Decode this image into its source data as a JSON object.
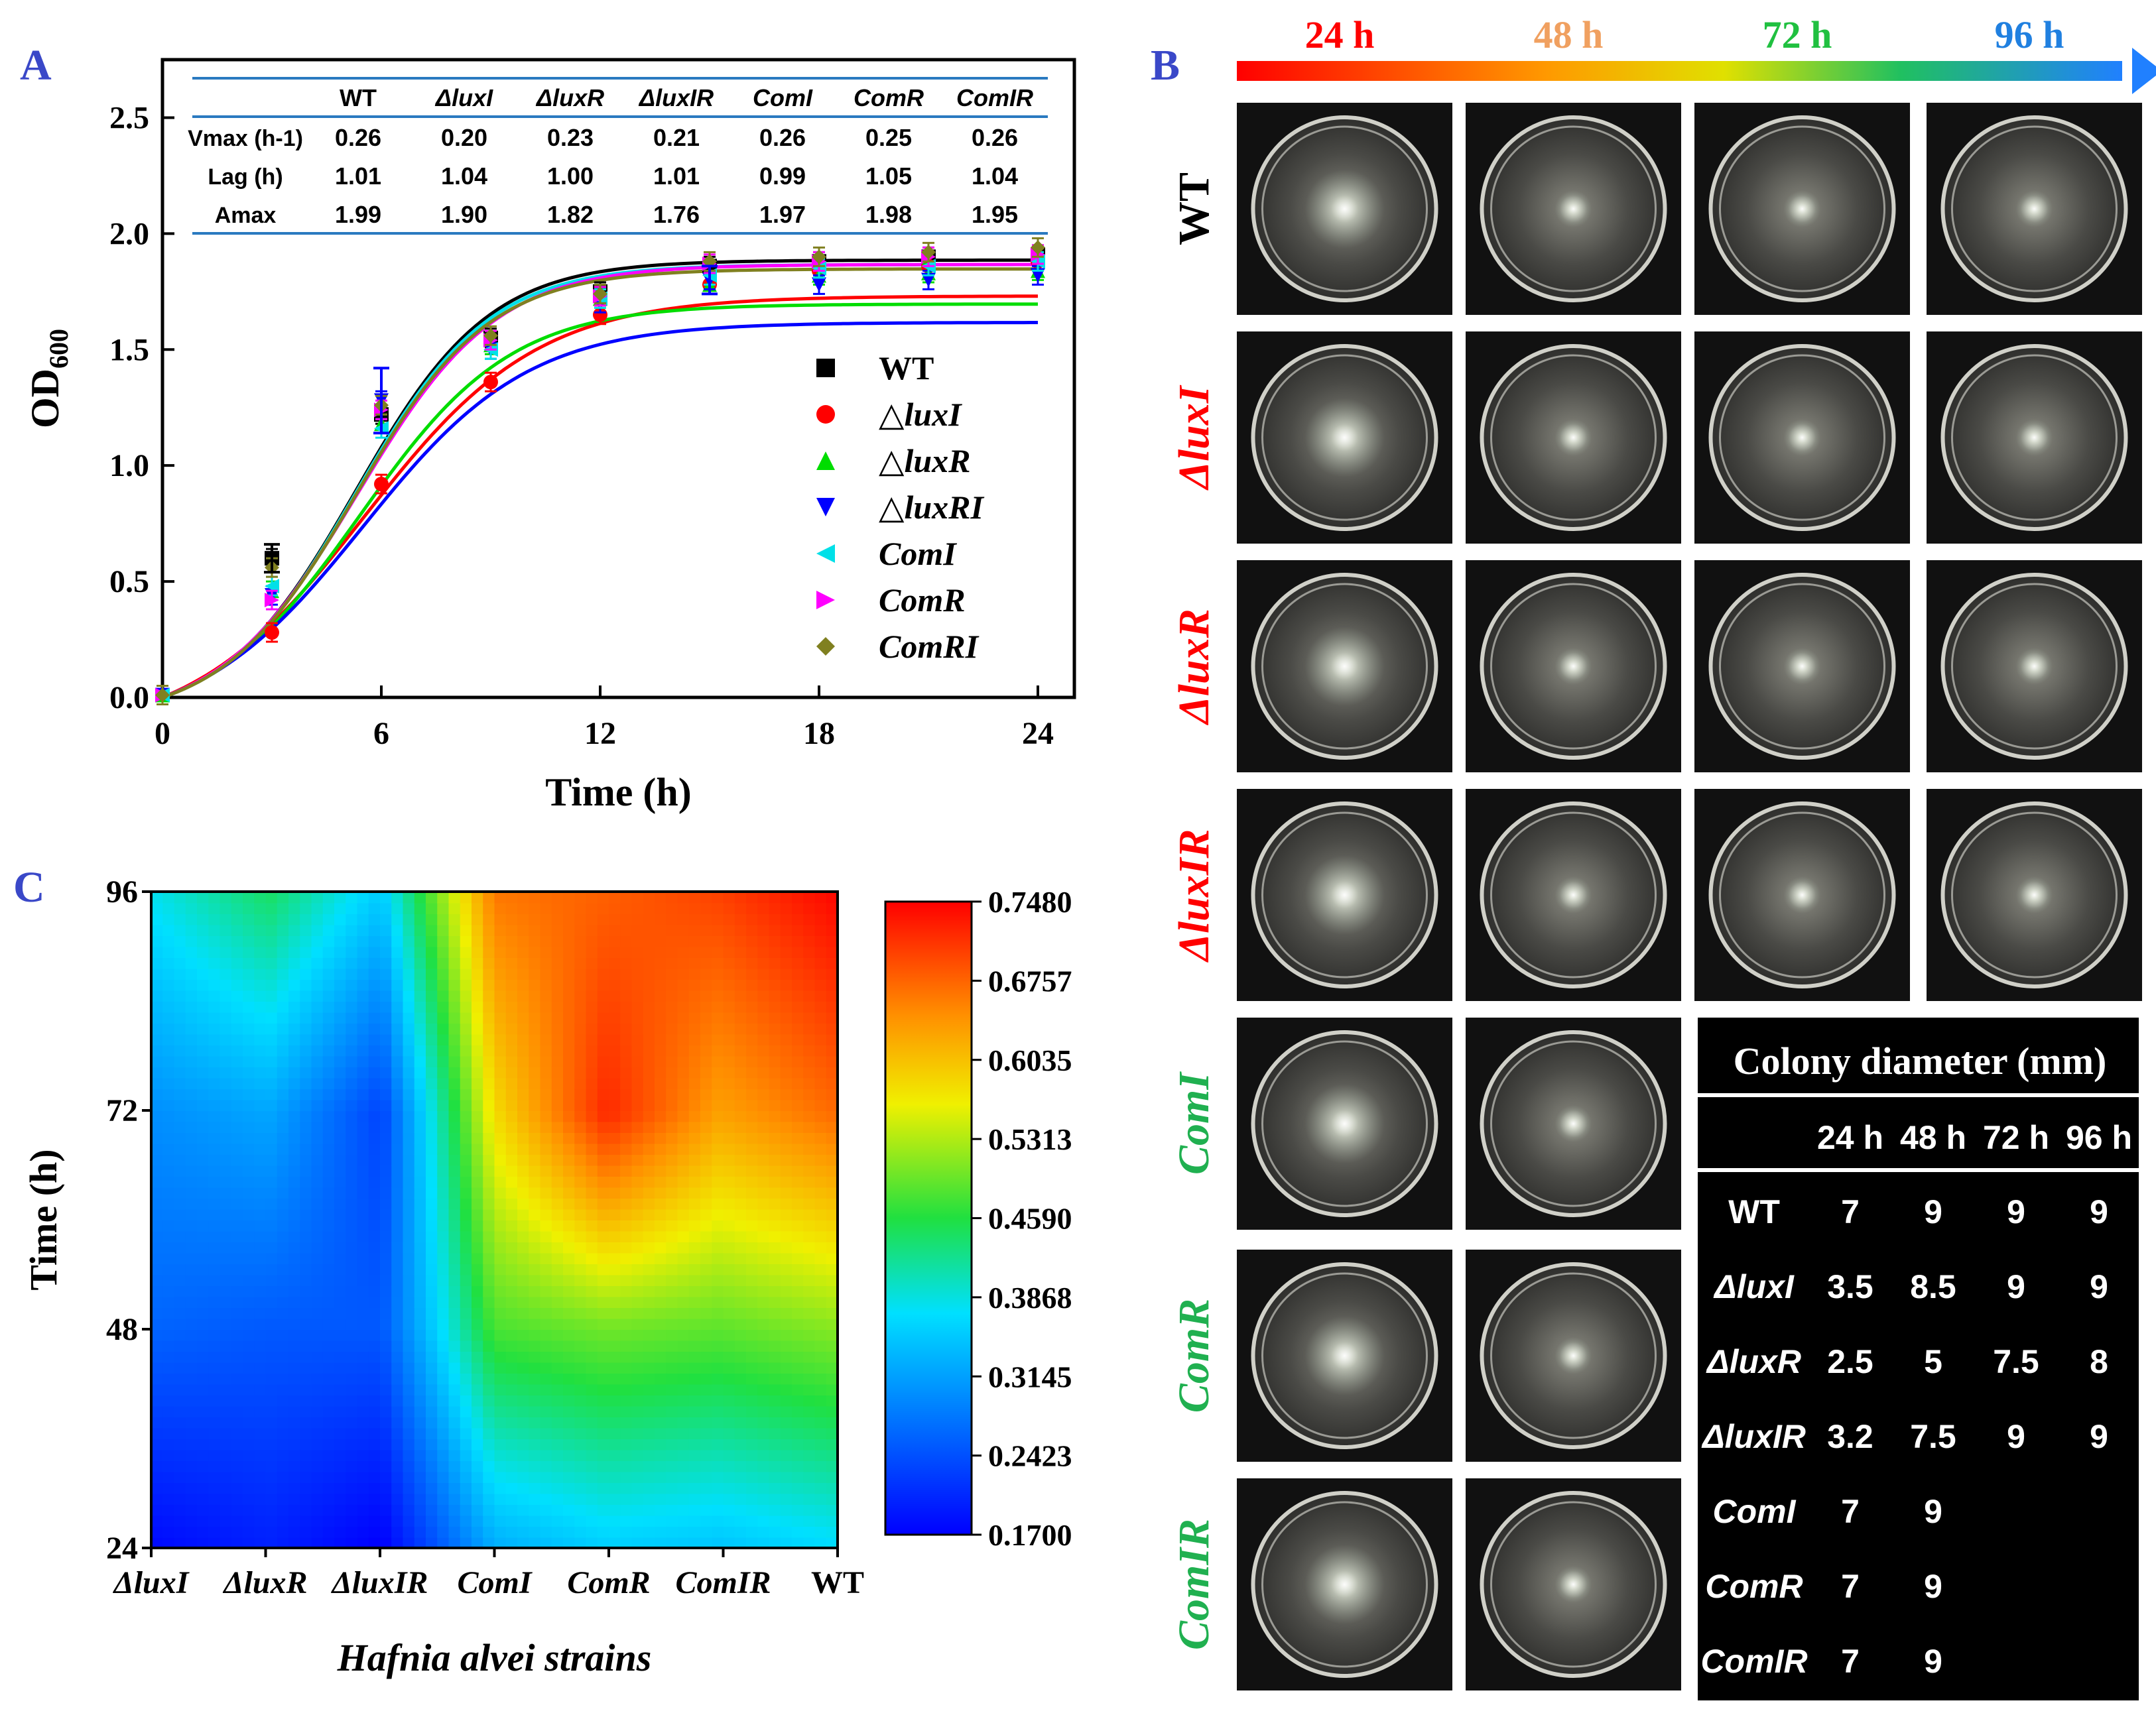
{
  "panel_a": {
    "label": "A",
    "table": {
      "columns": [
        "WT",
        "ΔluxI",
        "ΔluxR",
        "ΔluxIR",
        "ComI",
        "ComR",
        "ComIR"
      ],
      "rows": [
        {
          "name": "Vmax (h-1)",
          "values": [
            "0.26",
            "0.20",
            "0.23",
            "0.21",
            "0.26",
            "0.25",
            "0.26"
          ]
        },
        {
          "name": "Lag (h)",
          "values": [
            "1.01",
            "1.04",
            "1.00",
            "1.01",
            "0.99",
            "1.05",
            "1.04"
          ]
        },
        {
          "name": "Amax",
          "values": [
            "1.99",
            "1.90",
            "1.82",
            "1.76",
            "1.97",
            "1.98",
            "1.95"
          ]
        }
      ]
    }
  },
  "chart_data": [
    {
      "type": "scatter",
      "title": "",
      "xlabel": "Time (h)",
      "ylabel": "OD600",
      "xlim": [
        0,
        25
      ],
      "ylim": [
        0,
        2.75
      ],
      "xticks": [
        0,
        6,
        12,
        18,
        24
      ],
      "yticks": [
        0.0,
        0.5,
        1.0,
        1.5,
        2.0,
        2.5
      ],
      "x": [
        0,
        3,
        6,
        9,
        12,
        15,
        18,
        21,
        24
      ],
      "series": [
        {
          "name": "WT",
          "color": "#000000",
          "marker": "square",
          "values": [
            0.01,
            0.6,
            1.22,
            1.55,
            1.75,
            1.86,
            1.88,
            1.9,
            1.91
          ]
        },
        {
          "name": "△luxI",
          "color": "#ff0000",
          "marker": "circle",
          "values": [
            0.01,
            0.28,
            0.92,
            1.36,
            1.65,
            1.78,
            1.84,
            1.86,
            1.88
          ]
        },
        {
          "name": "△luxR",
          "color": "#00dd00",
          "marker": "triangle-up",
          "values": [
            0.01,
            0.46,
            1.18,
            1.52,
            1.72,
            1.78,
            1.82,
            1.83,
            1.84
          ]
        },
        {
          "name": "△luxRI",
          "color": "#0000ff",
          "marker": "triangle-down",
          "values": [
            0.01,
            0.44,
            1.28,
            1.5,
            1.7,
            1.8,
            1.78,
            1.8,
            1.82
          ]
        },
        {
          "name": "ComI",
          "color": "#00e0e8",
          "marker": "triangle-left",
          "values": [
            0.01,
            0.48,
            1.16,
            1.5,
            1.72,
            1.82,
            1.85,
            1.86,
            1.88
          ]
        },
        {
          "name": "ComR",
          "color": "#ff00ff",
          "marker": "triangle-right",
          "values": [
            0.01,
            0.42,
            1.24,
            1.54,
            1.73,
            1.87,
            1.88,
            1.9,
            1.91
          ]
        },
        {
          "name": "ComRI",
          "color": "#808020",
          "marker": "diamond",
          "values": [
            0.01,
            0.56,
            1.26,
            1.56,
            1.74,
            1.88,
            1.9,
            1.92,
            1.94
          ]
        }
      ],
      "error_bars": {
        "WT_t3": 0.06,
        "luxRI_t6": 0.14,
        "luxRI_t15": 0.06
      }
    },
    {
      "type": "heatmap",
      "xlabel": "Hafnia alvei strains",
      "ylabel": "Time (h)",
      "categories": [
        "ΔluxI",
        "ΔluxR",
        "ΔluxIR",
        "ComI",
        "ComR",
        "ComIR",
        "WT"
      ],
      "yticks": [
        "24",
        "48",
        "72",
        "96"
      ],
      "colorbar_ticks": [
        "0.7480",
        "0.6757",
        "0.6035",
        "0.5313",
        "0.4590",
        "0.3868",
        "0.3145",
        "0.2423",
        "0.1700"
      ],
      "vmin": 0.17,
      "vmax": 0.748,
      "values_by_time": [
        [
          0.18,
          0.2,
          0.17,
          0.33,
          0.36,
          0.35,
          0.37
        ],
        [
          0.26,
          0.25,
          0.25,
          0.48,
          0.5,
          0.49,
          0.51
        ],
        [
          0.3,
          0.32,
          0.23,
          0.58,
          0.72,
          0.63,
          0.67
        ],
        [
          0.38,
          0.44,
          0.35,
          0.66,
          0.68,
          0.7,
          0.74
        ]
      ]
    }
  ],
  "panel_b": {
    "label": "B",
    "time_labels": [
      "24 h",
      "48 h",
      "72 h",
      "96 h"
    ],
    "time_colors": [
      "#ff0000",
      "#f0a060",
      "#20c040",
      "#2080e0"
    ],
    "rows": [
      {
        "label": "WT",
        "color": "#000000",
        "n": 4
      },
      {
        "label": "ΔluxI",
        "color": "#ff0000",
        "n": 4
      },
      {
        "label": "ΔluxR",
        "color": "#ff0000",
        "n": 4
      },
      {
        "label": "ΔluxIR",
        "color": "#ff0000",
        "n": 4
      },
      {
        "label": "ComI",
        "color": "#20b050",
        "n": 2
      },
      {
        "label": "ComR",
        "color": "#20b050",
        "n": 2
      },
      {
        "label": "ComIR",
        "color": "#20b050",
        "n": 2
      }
    ],
    "table": {
      "title": "Colony diameter (mm)",
      "headers": [
        "24 h",
        "48 h",
        "72 h",
        "96 h"
      ],
      "rows": [
        {
          "name": "WT",
          "values": [
            "7",
            "9",
            "9",
            "9"
          ]
        },
        {
          "name": "ΔluxI",
          "values": [
            "3.5",
            "8.5",
            "9",
            "9"
          ]
        },
        {
          "name": "ΔluxR",
          "values": [
            "2.5",
            "5",
            "7.5",
            "8"
          ]
        },
        {
          "name": "ΔluxIR",
          "values": [
            "3.2",
            "7.5",
            "9",
            "9"
          ]
        },
        {
          "name": "ComI",
          "values": [
            "7",
            "9"
          ]
        },
        {
          "name": "ComR",
          "values": [
            "7",
            "9"
          ]
        },
        {
          "name": "ComIR",
          "values": [
            "7",
            "9"
          ]
        }
      ]
    }
  },
  "panel_c": {
    "label": "C"
  }
}
